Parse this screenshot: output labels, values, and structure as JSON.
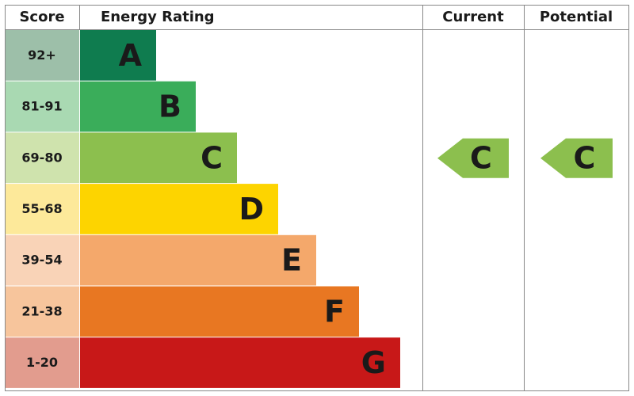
{
  "headers": {
    "score": "Score",
    "rating": "Energy Rating",
    "current": "Current",
    "potential": "Potential"
  },
  "bands": [
    {
      "score": "92+",
      "letter": "A",
      "color": "#0f7c4f",
      "score_color": "#9dbfa9"
    },
    {
      "score": "81-91",
      "letter": "B",
      "color": "#3aad5a",
      "score_color": "#a9d9b2"
    },
    {
      "score": "69-80",
      "letter": "C",
      "color": "#8cbf4e",
      "score_color": "#cfe3ad"
    },
    {
      "score": "55-68",
      "letter": "D",
      "color": "#fdd400",
      "score_color": "#fde99a"
    },
    {
      "score": "39-54",
      "letter": "E",
      "color": "#f4a86b",
      "score_color": "#f9d3b7"
    },
    {
      "score": "21-38",
      "letter": "F",
      "color": "#e87722",
      "score_color": "#f7c59c"
    },
    {
      "score": "1-20",
      "letter": "G",
      "color": "#c81818",
      "score_color": "#e29c8e"
    }
  ],
  "current": "C",
  "potential": "C"
}
